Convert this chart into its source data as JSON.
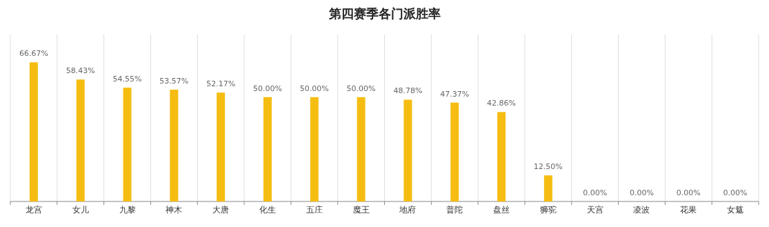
{
  "chart_data": {
    "type": "bar",
    "title": "第四赛季各门派胜率",
    "categories": [
      "龙宫",
      "女儿",
      "九黎",
      "神木",
      "大唐",
      "化生",
      "五庄",
      "魔王",
      "地府",
      "普陀",
      "盘丝",
      "狮驼",
      "天宫",
      "凌波",
      "花果",
      "女魃"
    ],
    "values": [
      66.67,
      58.43,
      54.55,
      53.57,
      52.17,
      50.0,
      50.0,
      50.0,
      48.78,
      47.37,
      42.86,
      12.5,
      0.0,
      0.0,
      0.0,
      0.0
    ],
    "value_labels": [
      "66.67%",
      "58.43%",
      "54.55%",
      "53.57%",
      "52.17%",
      "50.00%",
      "50.00%",
      "50.00%",
      "48.78%",
      "47.37%",
      "42.86%",
      "12.50%",
      "0.00%",
      "0.00%",
      "0.00%",
      "0.00%"
    ],
    "color": "#f5bd12",
    "grid": "x"
  }
}
